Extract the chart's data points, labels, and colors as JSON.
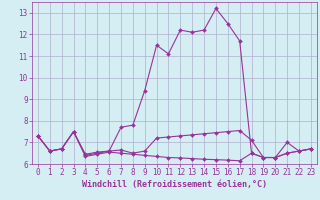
{
  "xlabel": "Windchill (Refroidissement éolien,°C)",
  "x": [
    0,
    1,
    2,
    3,
    4,
    5,
    6,
    7,
    8,
    9,
    10,
    11,
    12,
    13,
    14,
    15,
    16,
    17,
    18,
    19,
    20,
    21,
    22,
    23
  ],
  "line1_y": [
    7.3,
    6.6,
    6.7,
    7.5,
    6.45,
    6.55,
    6.6,
    6.65,
    6.5,
    6.6,
    7.2,
    7.25,
    7.3,
    7.35,
    7.4,
    7.45,
    7.5,
    7.55,
    7.1,
    6.3,
    6.3,
    6.5,
    6.6,
    6.7
  ],
  "line2_y": [
    7.3,
    6.6,
    6.7,
    7.5,
    6.4,
    6.5,
    6.6,
    7.7,
    7.8,
    9.4,
    11.5,
    11.1,
    12.2,
    12.1,
    12.2,
    13.2,
    12.5,
    11.7,
    6.5,
    6.3,
    6.3,
    7.0,
    6.6,
    6.7
  ],
  "line3_y": [
    7.3,
    6.6,
    6.7,
    7.5,
    6.35,
    6.45,
    6.55,
    6.5,
    6.45,
    6.4,
    6.35,
    6.3,
    6.28,
    6.25,
    6.22,
    6.2,
    6.18,
    6.15,
    6.5,
    6.3,
    6.3,
    6.5,
    6.6,
    6.7
  ],
  "bg_color": "#d4eef4",
  "grid_color": "#b0b0cc",
  "line_color": "#993399",
  "marker": "D",
  "marker_size": 2.0,
  "line_width": 0.8,
  "ylim": [
    6.0,
    13.5
  ],
  "yticks": [
    6,
    7,
    8,
    9,
    10,
    11,
    12,
    13
  ],
  "xlim": [
    -0.5,
    23.5
  ],
  "xticks": [
    0,
    1,
    2,
    3,
    4,
    5,
    6,
    7,
    8,
    9,
    10,
    11,
    12,
    13,
    14,
    15,
    16,
    17,
    18,
    19,
    20,
    21,
    22,
    23
  ],
  "xlabel_fontsize": 6,
  "tick_fontsize": 5.5
}
